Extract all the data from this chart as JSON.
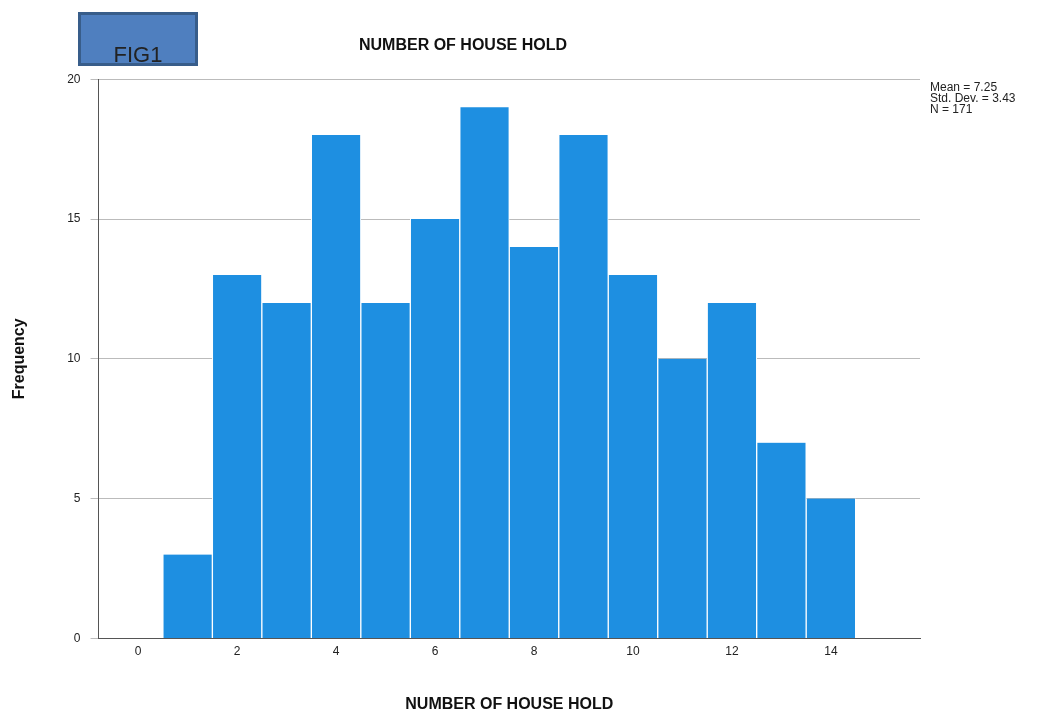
{
  "chart_data": {
    "type": "histogram",
    "title": "NUMBER OF HOUSE HOLD",
    "xlabel": "NUMBER OF HOUSE HOLD",
    "ylabel": "Frequency",
    "bins": [
      0.5,
      1.5,
      2.5,
      3.5,
      4.5,
      5.5,
      6.5,
      7.5,
      8.5,
      9.5,
      10.5,
      11.5,
      12.5,
      13.5,
      14.5
    ],
    "values": [
      3,
      13,
      12,
      18,
      12,
      15,
      19,
      14,
      18,
      13,
      10,
      12,
      7,
      5
    ],
    "color": "#1e8fe1",
    "xlim": [
      -0.8,
      15.8
    ],
    "xticks": [
      0,
      2,
      4,
      6,
      8,
      10,
      12,
      14
    ],
    "ylim": [
      0,
      20
    ],
    "yticks": [
      0,
      5,
      10,
      15,
      20
    ],
    "grid": "y",
    "annotations": [
      "FIG1",
      "Mean = 7.25",
      "Std. Dev. = 3.43",
      "N = 171"
    ]
  }
}
